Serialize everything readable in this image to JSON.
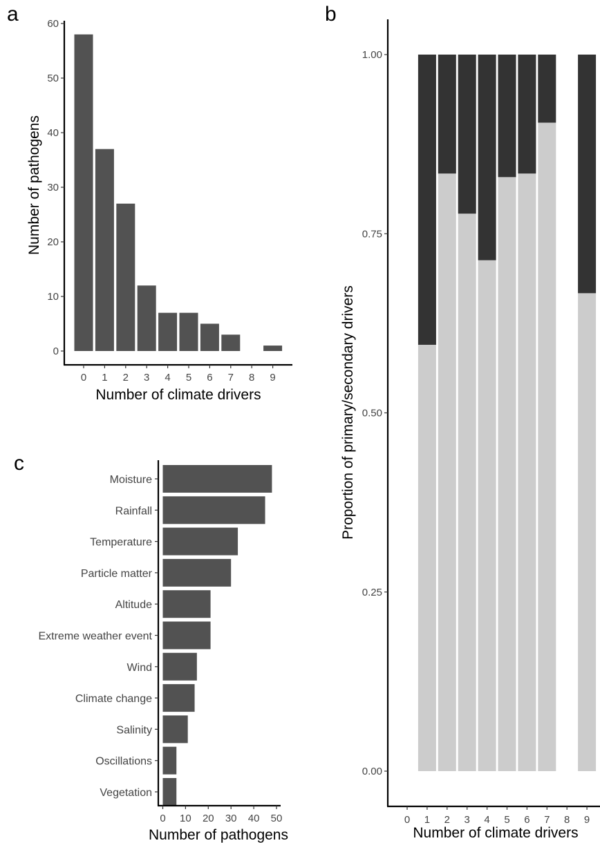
{
  "panel_letters": {
    "a": "a",
    "b": "b",
    "c": "c"
  },
  "colors": {
    "bar": "#525252",
    "primary": "#cccccc",
    "secondary": "#333333"
  },
  "chart_data": [
    {
      "panel": "a",
      "type": "bar",
      "categories": [
        "0",
        "1",
        "2",
        "3",
        "4",
        "5",
        "6",
        "7",
        "8",
        "9"
      ],
      "values": [
        58,
        37,
        27,
        12,
        7,
        7,
        5,
        3,
        0,
        1
      ],
      "xlabel": "Number of climate drivers",
      "ylabel": "Number of pathogens",
      "ylim": [
        0,
        60
      ],
      "yticks": [
        "0",
        "10",
        "20",
        "30",
        "40",
        "50",
        "60"
      ],
      "grid": false
    },
    {
      "panel": "b",
      "type": "bar",
      "stacked": true,
      "categories": [
        "0",
        "1",
        "2",
        "3",
        "4",
        "5",
        "6",
        "7",
        "8",
        "9"
      ],
      "series": [
        {
          "values": [
            0,
            0.595,
            0.834,
            0.778,
            0.713,
            0.829,
            0.834,
            0.905,
            0,
            0.667
          ]
        },
        {
          "values": [
            0,
            0.405,
            0.166,
            0.222,
            0.287,
            0.171,
            0.166,
            0.095,
            0,
            0.333
          ]
        }
      ],
      "xlabel": "Number of climate drivers",
      "ylabel": "Proportion of primary/secondary drivers",
      "ylim": [
        0,
        1
      ],
      "yticks": [
        "0.00",
        "0.25",
        "0.50",
        "0.75",
        "1.00"
      ],
      "grid": false
    },
    {
      "panel": "c",
      "type": "bar",
      "orientation": "horizontal",
      "categories": [
        "Moisture",
        "Rainfall",
        "Temperature",
        "Particle matter",
        "Altitude",
        "Extreme weather event",
        "Wind",
        "Climate change",
        "Salinity",
        "Oscillations",
        "Vegetation"
      ],
      "values": [
        48,
        45,
        33,
        30,
        21,
        21,
        15,
        14,
        11,
        6,
        6
      ],
      "xlabel": "Number of pathogens",
      "xlim": [
        0,
        50
      ],
      "xticks": [
        "0",
        "10",
        "20",
        "30",
        "40",
        "50"
      ],
      "grid": false
    }
  ]
}
